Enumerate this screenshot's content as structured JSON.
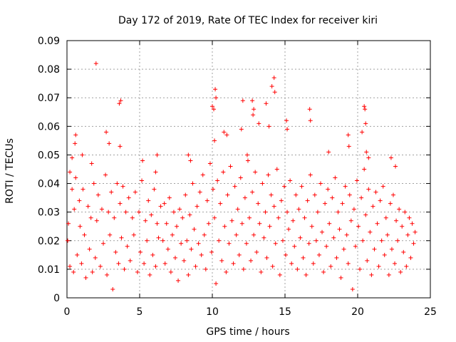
{
  "chart_data": {
    "type": "scatter",
    "title": "Day 172 of 2019, Rate Of TEC Index for receiver kiri",
    "xlabel": "GPS time / hours",
    "ylabel": "ROTI / TECUs",
    "xlim": [
      0,
      25
    ],
    "ylim": [
      0,
      0.09
    ],
    "xticks": [
      0,
      5,
      10,
      15,
      20,
      25
    ],
    "xtick_labels": [
      "0",
      "5",
      "10",
      "15",
      "20",
      "25"
    ],
    "yticks": [
      0,
      0.01,
      0.02,
      0.03,
      0.04,
      0.05,
      0.06,
      0.07,
      0.08,
      0.09
    ],
    "ytick_labels": [
      "0",
      "0.01",
      "0.02",
      "0.03",
      "0.04",
      "0.05",
      "0.06",
      "0.07",
      "0.08",
      "0.09"
    ],
    "grid": true,
    "marker": "+",
    "color": "#ff0000",
    "series": [
      {
        "name": "ROTI",
        "points": [
          [
            0.05,
            0.02
          ],
          [
            0.1,
            0.026
          ],
          [
            0.2,
            0.011
          ],
          [
            0.35,
            0.038
          ],
          [
            0.45,
            0.009
          ],
          [
            0.5,
            0.031
          ],
          [
            0.6,
            0.042
          ],
          [
            0.7,
            0.015
          ],
          [
            0.85,
            0.034
          ],
          [
            0.9,
            0.025
          ],
          [
            1.0,
            0.012
          ],
          [
            1.1,
            0.038
          ],
          [
            1.2,
            0.022
          ],
          [
            1.3,
            0.007
          ],
          [
            1.45,
            0.032
          ],
          [
            1.55,
            0.017
          ],
          [
            1.65,
            0.028
          ],
          [
            1.75,
            0.009
          ],
          [
            1.85,
            0.04
          ],
          [
            1.95,
            0.014
          ],
          [
            2.05,
            0.027
          ],
          [
            2.15,
            0.036
          ],
          [
            2.3,
            0.011
          ],
          [
            2.4,
            0.031
          ],
          [
            2.5,
            0.019
          ],
          [
            2.65,
            0.043
          ],
          [
            2.75,
            0.008
          ],
          [
            2.85,
            0.03
          ],
          [
            2.95,
            0.022
          ],
          [
            3.05,
            0.037
          ],
          [
            3.15,
            0.003
          ],
          [
            3.25,
            0.028
          ],
          [
            3.35,
            0.016
          ],
          [
            3.45,
            0.04
          ],
          [
            3.55,
            0.012
          ],
          [
            3.65,
            0.033
          ],
          [
            3.75,
            0.021
          ],
          [
            3.85,
            0.039
          ],
          [
            3.95,
            0.01
          ],
          [
            4.05,
            0.03
          ],
          [
            4.15,
            0.018
          ],
          [
            4.25,
            0.035
          ],
          [
            4.35,
            0.013
          ],
          [
            4.5,
            0.028
          ],
          [
            4.6,
            0.022
          ],
          [
            4.7,
            0.037
          ],
          [
            4.85,
            0.009
          ],
          [
            4.95,
            0.03
          ],
          [
            5.05,
            0.016
          ],
          [
            5.15,
            0.041
          ],
          [
            5.3,
            0.012
          ],
          [
            5.4,
            0.027
          ],
          [
            5.5,
            0.02
          ],
          [
            5.6,
            0.034
          ],
          [
            5.7,
            0.008
          ],
          [
            5.8,
            0.029
          ],
          [
            5.9,
            0.015
          ],
          [
            6.0,
            0.038
          ],
          [
            6.1,
            0.011
          ],
          [
            6.2,
            0.026
          ],
          [
            6.3,
            0.021
          ],
          [
            6.45,
            0.032
          ],
          [
            6.6,
            0.02
          ],
          [
            6.7,
            0.033
          ],
          [
            6.75,
            0.012
          ],
          [
            6.85,
            0.026
          ],
          [
            6.95,
            0.017
          ],
          [
            7.05,
            0.035
          ],
          [
            7.15,
            0.009
          ],
          [
            7.25,
            0.022
          ],
          [
            7.35,
            0.03
          ],
          [
            7.45,
            0.014
          ],
          [
            7.55,
            0.025
          ],
          [
            7.65,
            0.006
          ],
          [
            7.75,
            0.031
          ],
          [
            7.85,
            0.019
          ],
          [
            7.95,
            0.028
          ],
          [
            8.05,
            0.013
          ],
          [
            8.15,
            0.036
          ],
          [
            8.25,
            0.02
          ],
          [
            8.35,
            0.008
          ],
          [
            8.45,
            0.029
          ],
          [
            8.55,
            0.017
          ],
          [
            8.65,
            0.04
          ],
          [
            8.75,
            0.024
          ],
          [
            8.85,
            0.011
          ],
          [
            8.95,
            0.032
          ],
          [
            9.05,
            0.019
          ],
          [
            9.15,
            0.037
          ],
          [
            9.25,
            0.015
          ],
          [
            9.35,
            0.043
          ],
          [
            9.45,
            0.022
          ],
          [
            9.55,
            0.01
          ],
          [
            9.65,
            0.034
          ],
          [
            9.75,
            0.026
          ],
          [
            9.85,
            0.047
          ],
          [
            9.95,
            0.016
          ],
          [
            10.05,
            0.038
          ],
          [
            10.15,
            0.028
          ],
          [
            10.25,
            0.005
          ],
          [
            10.35,
            0.041
          ],
          [
            10.45,
            0.02
          ],
          [
            10.55,
            0.033
          ],
          [
            10.65,
            0.013
          ],
          [
            10.75,
            0.044
          ],
          [
            10.85,
            0.025
          ],
          [
            10.95,
            0.009
          ],
          [
            11.05,
            0.036
          ],
          [
            11.15,
            0.019
          ],
          [
            11.25,
            0.046
          ],
          [
            11.35,
            0.027
          ],
          [
            11.45,
            0.012
          ],
          [
            11.55,
            0.039
          ],
          [
            11.65,
            0.022
          ],
          [
            11.75,
            0.031
          ],
          [
            11.85,
            0.015
          ],
          [
            11.95,
            0.042
          ],
          [
            12.05,
            0.026
          ],
          [
            12.15,
            0.01
          ],
          [
            12.25,
            0.035
          ],
          [
            12.35,
            0.019
          ],
          [
            12.45,
            0.048
          ],
          [
            12.55,
            0.028
          ],
          [
            12.65,
            0.013
          ],
          [
            12.75,
            0.037
          ],
          [
            12.85,
            0.022
          ],
          [
            12.95,
            0.044
          ],
          [
            13.05,
            0.016
          ],
          [
            13.15,
            0.033
          ],
          [
            13.25,
            0.026
          ],
          [
            13.35,
            0.009
          ],
          [
            13.45,
            0.04
          ],
          [
            13.55,
            0.021
          ],
          [
            13.65,
            0.03
          ],
          [
            13.75,
            0.014
          ],
          [
            13.85,
            0.043
          ],
          [
            13.95,
            0.025
          ],
          [
            14.05,
            0.036
          ],
          [
            14.15,
            0.011
          ],
          [
            14.25,
            0.032
          ],
          [
            14.35,
            0.019
          ],
          [
            14.45,
            0.045
          ],
          [
            14.55,
            0.028
          ],
          [
            14.65,
            0.008
          ],
          [
            14.75,
            0.034
          ],
          [
            14.85,
            0.02
          ],
          [
            14.95,
            0.039
          ],
          [
            15.05,
            0.015
          ],
          [
            15.15,
            0.03
          ],
          [
            15.25,
            0.024
          ],
          [
            15.35,
            0.041
          ],
          [
            15.45,
            0.012
          ],
          [
            15.55,
            0.027
          ],
          [
            15.65,
            0.018
          ],
          [
            15.75,
            0.036
          ],
          [
            15.85,
            0.01
          ],
          [
            15.95,
            0.031
          ],
          [
            16.05,
            0.021
          ],
          [
            16.15,
            0.039
          ],
          [
            16.25,
            0.014
          ],
          [
            16.35,
            0.028
          ],
          [
            16.45,
            0.008
          ],
          [
            16.55,
            0.034
          ],
          [
            16.65,
            0.019
          ],
          [
            16.75,
            0.043
          ],
          [
            16.85,
            0.025
          ],
          [
            16.95,
            0.012
          ],
          [
            17.05,
            0.036
          ],
          [
            17.15,
            0.02
          ],
          [
            17.25,
            0.03
          ],
          [
            17.35,
            0.015
          ],
          [
            17.45,
            0.04
          ],
          [
            17.55,
            0.023
          ],
          [
            17.65,
            0.009
          ],
          [
            17.75,
            0.033
          ],
          [
            17.85,
            0.018
          ],
          [
            17.95,
            0.038
          ],
          [
            18.05,
            0.026
          ],
          [
            18.15,
            0.011
          ],
          [
            18.25,
            0.035
          ],
          [
            18.35,
            0.021
          ],
          [
            18.45,
            0.042
          ],
          [
            18.55,
            0.014
          ],
          [
            18.65,
            0.03
          ],
          [
            18.75,
            0.024
          ],
          [
            18.85,
            0.007
          ],
          [
            18.95,
            0.033
          ],
          [
            19.05,
            0.017
          ],
          [
            19.15,
            0.039
          ],
          [
            19.25,
            0.022
          ],
          [
            19.35,
            0.012
          ],
          [
            19.45,
            0.036
          ],
          [
            19.55,
            0.027
          ],
          [
            19.65,
            0.003
          ],
          [
            19.75,
            0.031
          ],
          [
            19.85,
            0.018
          ],
          [
            19.95,
            0.041
          ],
          [
            20.05,
            0.025
          ],
          [
            20.15,
            0.01
          ],
          [
            20.25,
            0.035
          ],
          [
            20.35,
            0.02
          ],
          [
            20.45,
            0.045
          ],
          [
            20.55,
            0.029
          ],
          [
            20.65,
            0.013
          ],
          [
            20.75,
            0.038
          ],
          [
            20.85,
            0.023
          ],
          [
            20.95,
            0.008
          ],
          [
            21.05,
            0.032
          ],
          [
            21.15,
            0.017
          ],
          [
            21.25,
            0.037
          ],
          [
            21.35,
            0.026
          ],
          [
            21.45,
            0.011
          ],
          [
            21.55,
            0.034
          ],
          [
            21.65,
            0.02
          ],
          [
            21.75,
            0.039
          ],
          [
            21.85,
            0.015
          ],
          [
            21.95,
            0.028
          ],
          [
            22.05,
            0.022
          ],
          [
            22.15,
            0.008
          ],
          [
            22.25,
            0.033
          ],
          [
            22.35,
            0.017
          ],
          [
            22.45,
            0.036
          ],
          [
            22.55,
            0.012
          ],
          [
            22.65,
            0.027
          ],
          [
            22.75,
            0.02
          ],
          [
            22.85,
            0.031
          ],
          [
            22.95,
            0.009
          ],
          [
            23.05,
            0.025
          ],
          [
            23.15,
            0.016
          ],
          [
            23.25,
            0.03
          ],
          [
            23.35,
            0.011
          ],
          [
            23.45,
            0.022
          ],
          [
            23.55,
            0.028
          ],
          [
            23.65,
            0.014
          ],
          [
            23.75,
            0.026
          ],
          [
            23.85,
            0.019
          ],
          [
            23.95,
            0.023
          ],
          [
            0.2,
            0.044
          ],
          [
            0.35,
            0.049
          ],
          [
            0.55,
            0.054
          ],
          [
            0.6,
            0.057
          ],
          [
            1.05,
            0.05
          ],
          [
            1.7,
            0.047
          ],
          [
            2.0,
            0.082
          ],
          [
            2.7,
            0.058
          ],
          [
            2.9,
            0.054
          ],
          [
            3.6,
            0.068
          ],
          [
            3.7,
            0.069
          ],
          [
            3.65,
            0.053
          ],
          [
            5.2,
            0.048
          ],
          [
            6.1,
            0.044
          ],
          [
            6.2,
            0.05
          ],
          [
            8.35,
            0.05
          ],
          [
            8.5,
            0.048
          ],
          [
            10.0,
            0.067
          ],
          [
            10.1,
            0.066
          ],
          [
            10.15,
            0.055
          ],
          [
            10.2,
            0.073
          ],
          [
            10.25,
            0.07
          ],
          [
            10.8,
            0.058
          ],
          [
            11.0,
            0.057
          ],
          [
            12.0,
            0.059
          ],
          [
            12.1,
            0.069
          ],
          [
            12.4,
            0.05
          ],
          [
            12.75,
            0.069
          ],
          [
            12.8,
            0.064
          ],
          [
            12.85,
            0.066
          ],
          [
            13.2,
            0.061
          ],
          [
            13.7,
            0.068
          ],
          [
            13.9,
            0.06
          ],
          [
            14.1,
            0.074
          ],
          [
            14.25,
            0.077
          ],
          [
            14.3,
            0.072
          ],
          [
            15.1,
            0.062
          ],
          [
            15.15,
            0.059
          ],
          [
            16.7,
            0.066
          ],
          [
            16.75,
            0.062
          ],
          [
            18.0,
            0.051
          ],
          [
            19.35,
            0.057
          ],
          [
            19.4,
            0.053
          ],
          [
            20.3,
            0.058
          ],
          [
            20.45,
            0.067
          ],
          [
            20.5,
            0.066
          ],
          [
            20.55,
            0.061
          ],
          [
            20.6,
            0.051
          ],
          [
            20.75,
            0.049
          ],
          [
            22.3,
            0.049
          ],
          [
            22.6,
            0.046
          ]
        ]
      }
    ]
  }
}
